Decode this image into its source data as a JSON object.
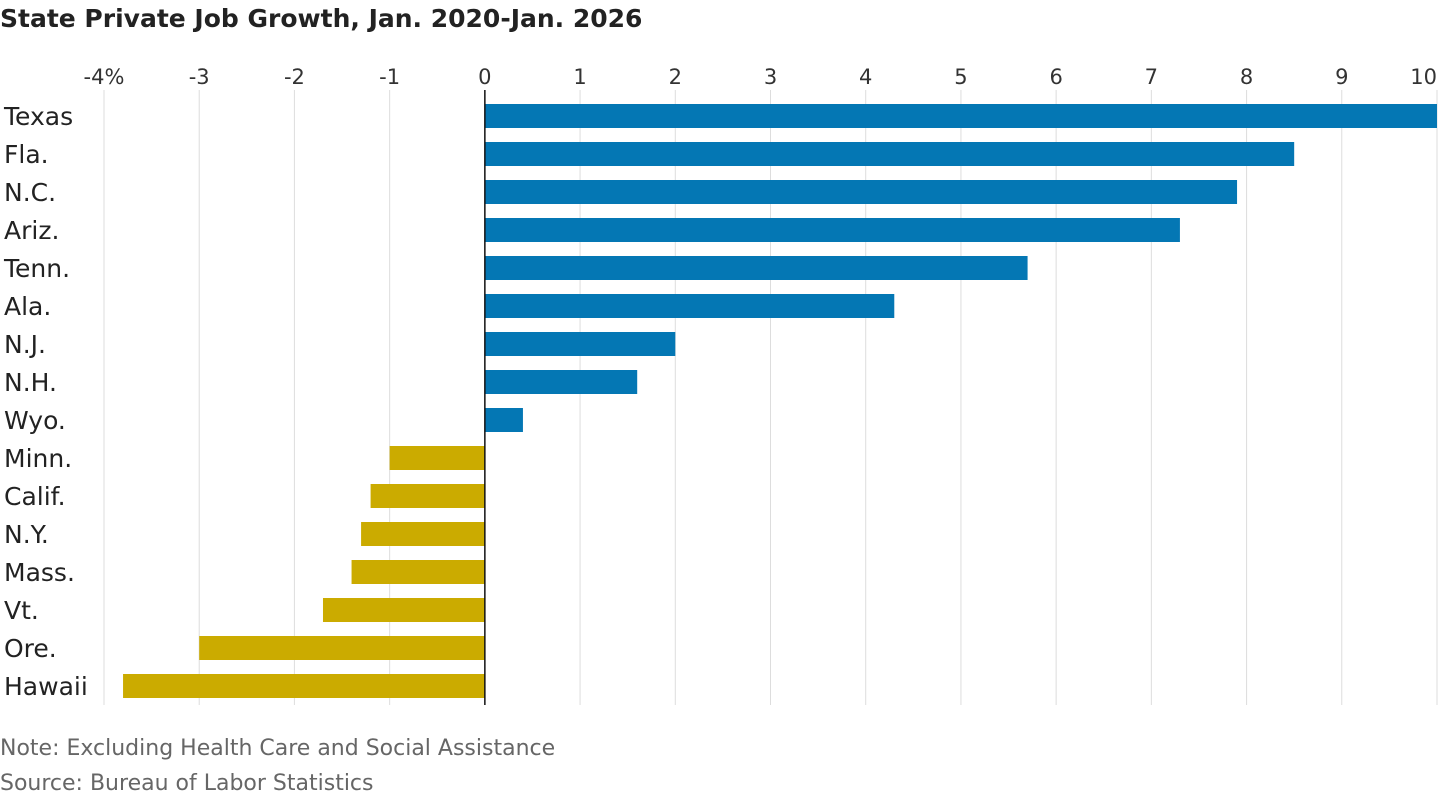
{
  "chart_data": {
    "type": "barh",
    "title": "State Private Job Growth, Jan. 2020-Jan. 2026",
    "categories": [
      "Texas",
      "Fla.",
      "N.C.",
      "Ariz.",
      "Tenn.",
      "Ala.",
      "N.J.",
      "N.H.",
      "Wyo.",
      "Minn.",
      "Calif.",
      "N.Y.",
      "Mass.",
      "Vt.",
      "Ore.",
      "Hawaii"
    ],
    "values": [
      10.0,
      8.5,
      7.9,
      7.3,
      5.7,
      4.3,
      2.0,
      1.6,
      0.4,
      -1.0,
      -1.2,
      -1.3,
      -1.4,
      -1.7,
      -3.0,
      -3.8
    ],
    "color_positive": "#0477b4",
    "color_negative": "#cbab00",
    "xlim": [
      -4,
      10
    ],
    "xticks": [
      {
        "value": -4,
        "label": "-4%"
      },
      -3,
      -2,
      -1,
      0,
      1,
      2,
      3,
      4,
      5,
      6,
      7,
      8,
      9,
      10
    ],
    "grid": true,
    "note": "Note: Excluding Health Care and Social Assistance",
    "source": "Source: Bureau of Labor Statistics"
  }
}
